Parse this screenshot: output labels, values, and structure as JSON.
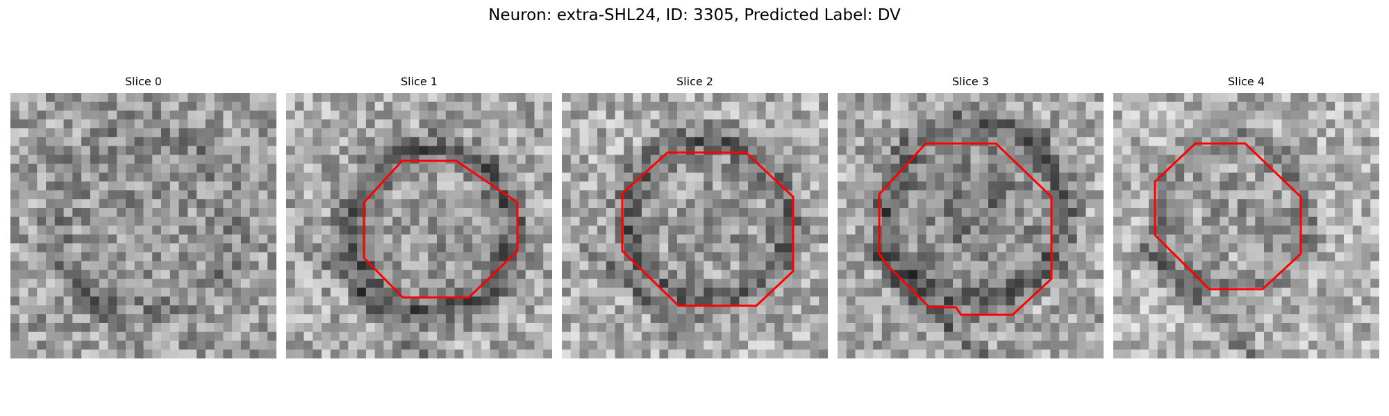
{
  "figure": {
    "title": "Neuron: extra-SHL24, ID: 3305, Predicted Label: DV"
  },
  "panels": [
    {
      "label": "Slice 0"
    },
    {
      "label": "Slice 1"
    },
    {
      "label": "Slice 2"
    },
    {
      "label": "Slice 3"
    },
    {
      "label": "Slice 4"
    }
  ],
  "colors": {
    "contour": "#ff0000",
    "background": "#ffffff"
  }
}
